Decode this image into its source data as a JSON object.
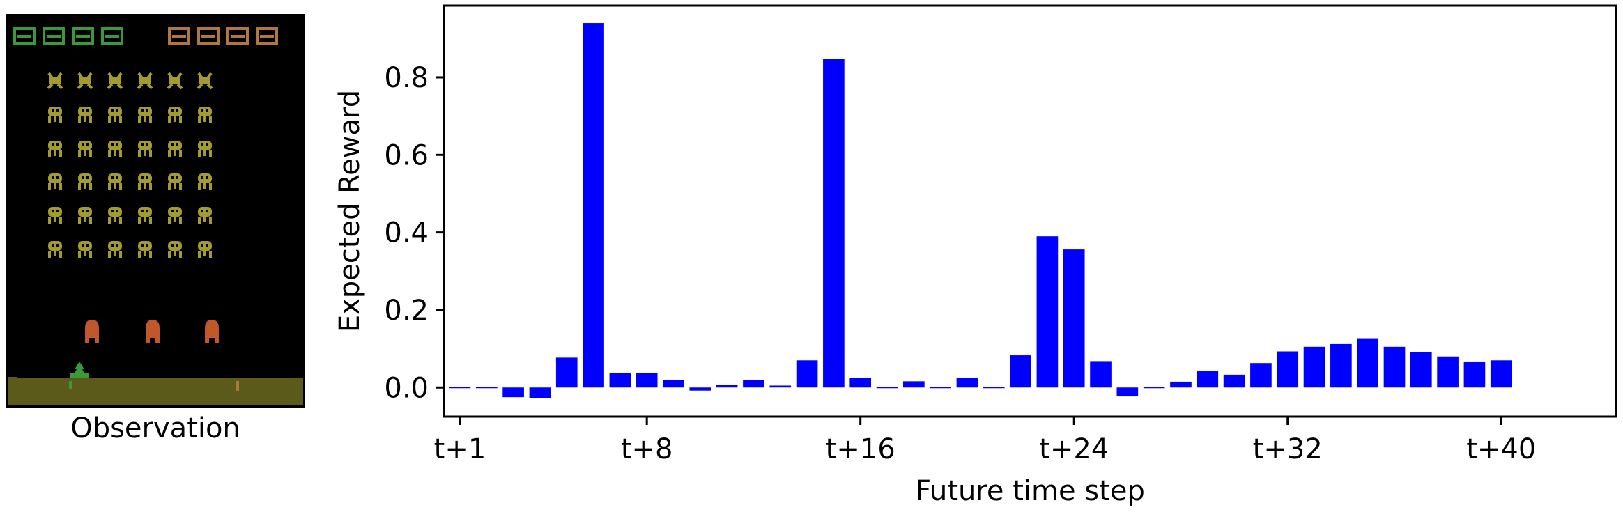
{
  "observation": {
    "caption": "Observation",
    "colors": {
      "background": "#000000",
      "score_left": "#3a9a3a",
      "score_right": "#b0783a",
      "invaders": "#a39c2c",
      "shields": "#c0582c",
      "ground": "#5c5a1a",
      "player": "#3a9a3a"
    }
  },
  "chart_data": {
    "type": "bar",
    "xlabel": "Future time step",
    "ylabel": "Expected Reward",
    "categories": [
      "t+1",
      "t+2",
      "t+3",
      "t+4",
      "t+5",
      "t+6",
      "t+7",
      "t+8",
      "t+9",
      "t+10",
      "t+11",
      "t+12",
      "t+13",
      "t+14",
      "t+15",
      "t+16",
      "t+17",
      "t+18",
      "t+19",
      "t+20",
      "t+21",
      "t+22",
      "t+23",
      "t+24",
      "t+25",
      "t+26",
      "t+27",
      "t+28",
      "t+29",
      "t+30",
      "t+31",
      "t+32",
      "t+33",
      "t+34",
      "t+35",
      "t+36",
      "t+37",
      "t+38",
      "t+39",
      "t+40"
    ],
    "values": [
      -0.003,
      -0.003,
      -0.025,
      -0.027,
      0.077,
      0.94,
      0.037,
      0.037,
      0.02,
      -0.008,
      0.007,
      0.02,
      0.005,
      0.07,
      0.848,
      0.025,
      -0.003,
      0.016,
      -0.002,
      0.025,
      -0.002,
      0.083,
      0.39,
      0.356,
      0.068,
      -0.023,
      0.0,
      0.015,
      0.042,
      0.033,
      0.063,
      0.093,
      0.105,
      0.112,
      0.127,
      0.105,
      0.092,
      0.08,
      0.067,
      0.07
    ],
    "xtick_labels": [
      "t+1",
      "t+8",
      "t+16",
      "t+24",
      "t+32",
      "t+40"
    ],
    "xtick_indices": [
      1,
      8,
      16,
      24,
      32,
      40
    ],
    "yticks": [
      0.0,
      0.2,
      0.4,
      0.6,
      0.8
    ],
    "ytick_labels": [
      "0.0",
      "0.2",
      "0.4",
      "0.6",
      "0.8"
    ],
    "ylim": [
      -0.075,
      0.985
    ],
    "xlim": [
      -0.6,
      43.3
    ],
    "bar_color": "#0000ff",
    "grid": false,
    "legend": "none"
  }
}
